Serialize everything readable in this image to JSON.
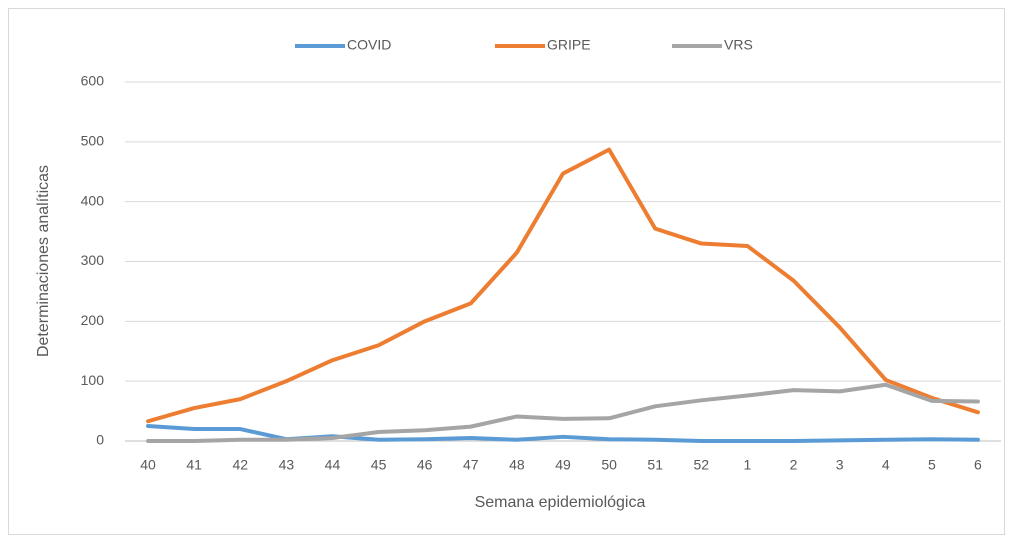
{
  "chart_data": {
    "type": "line",
    "xlabel": "Semana epidemiológica",
    "ylabel": "Determinaciones analíticas",
    "categories": [
      "40",
      "41",
      "42",
      "43",
      "44",
      "45",
      "46",
      "47",
      "48",
      "49",
      "50",
      "51",
      "52",
      "1",
      "2",
      "3",
      "4",
      "5",
      "6"
    ],
    "series": [
      {
        "name": "COVID",
        "color": "#5b9bd5",
        "values": [
          25,
          20,
          20,
          3,
          8,
          2,
          3,
          5,
          2,
          7,
          3,
          2,
          0,
          0,
          0,
          1,
          2,
          3,
          2
        ]
      },
      {
        "name": "GRIPE",
        "color": "#ed7d31",
        "values": [
          33,
          55,
          70,
          100,
          135,
          160,
          200,
          230,
          315,
          447,
          487,
          355,
          330,
          326,
          268,
          190,
          102,
          72,
          48
        ]
      },
      {
        "name": "VRS",
        "color": "#a5a5a5",
        "values": [
          0,
          0,
          2,
          2,
          5,
          15,
          18,
          24,
          41,
          37,
          38,
          58,
          68,
          76,
          85,
          83,
          94,
          67,
          66
        ]
      }
    ],
    "ylim": [
      0,
      600
    ],
    "yticks": [
      0,
      100,
      200,
      300,
      400,
      500,
      600
    ],
    "grid": true,
    "legend": "top"
  }
}
